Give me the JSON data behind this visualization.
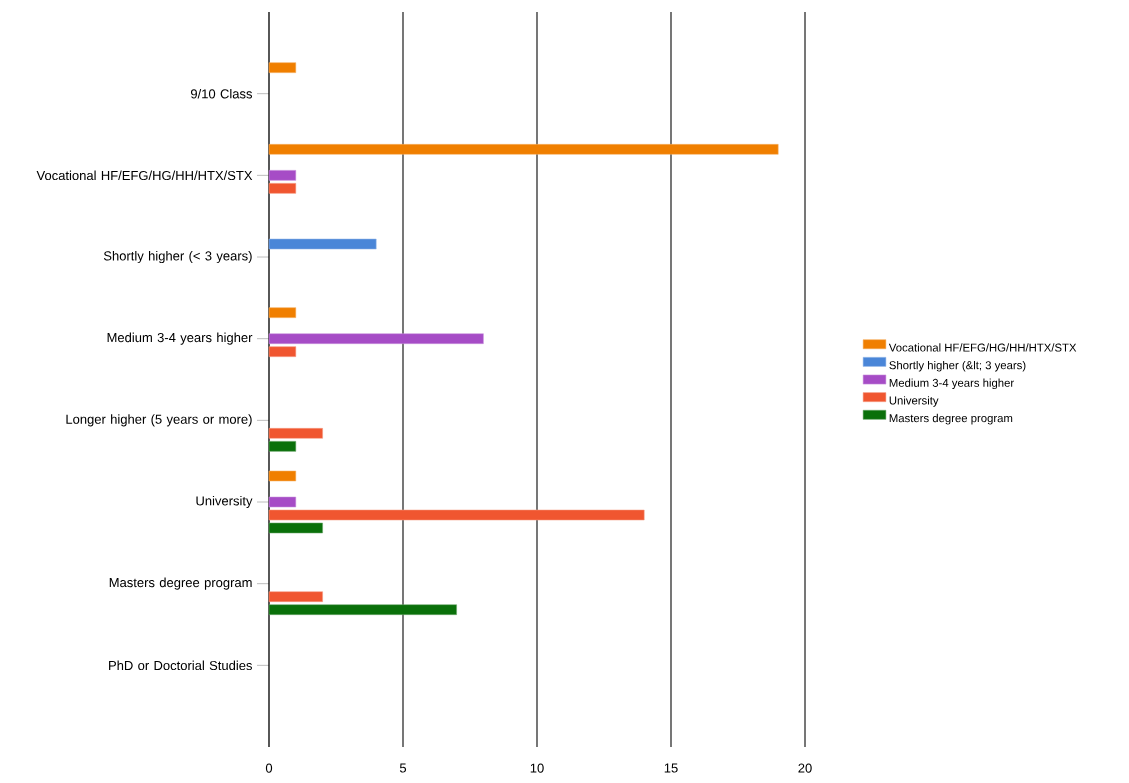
{
  "chart_data": {
    "type": "bar",
    "orientation": "horizontal",
    "categories": [
      "9/10 Class",
      "Vocational HF/EFG/HG/HH/HTX/STX",
      "Shortly higher (< 3 years)",
      "Medium 3-4 years higher",
      "Longer higher (5 years or more)",
      "University",
      "Masters degree program",
      "PhD or Doctorial Studies"
    ],
    "series": [
      {
        "name": "Vocational HF/EFG/HG/HH/HTX/STX",
        "color": "#f07f00",
        "values": [
          1,
          19,
          null,
          1,
          null,
          1,
          null,
          null
        ]
      },
      {
        "name": "Shortly higher (&lt; 3 years)",
        "color": "#4a86d8",
        "values": [
          null,
          null,
          4,
          null,
          null,
          null,
          null,
          null
        ]
      },
      {
        "name": "Medium 3-4 years higher",
        "color": "#a64cc6",
        "values": [
          null,
          1,
          null,
          8,
          null,
          1,
          null,
          null
        ]
      },
      {
        "name": "University",
        "color": "#f05630",
        "values": [
          null,
          1,
          null,
          1,
          2,
          14,
          2,
          null
        ]
      },
      {
        "name": "Masters degree program",
        "color": "#0a700a",
        "values": [
          null,
          null,
          null,
          null,
          1,
          2,
          7,
          null
        ]
      }
    ],
    "xlim": [
      0,
      20
    ],
    "xticks": [
      0,
      5,
      10,
      15,
      20
    ],
    "grid": "x",
    "legend": "right"
  }
}
